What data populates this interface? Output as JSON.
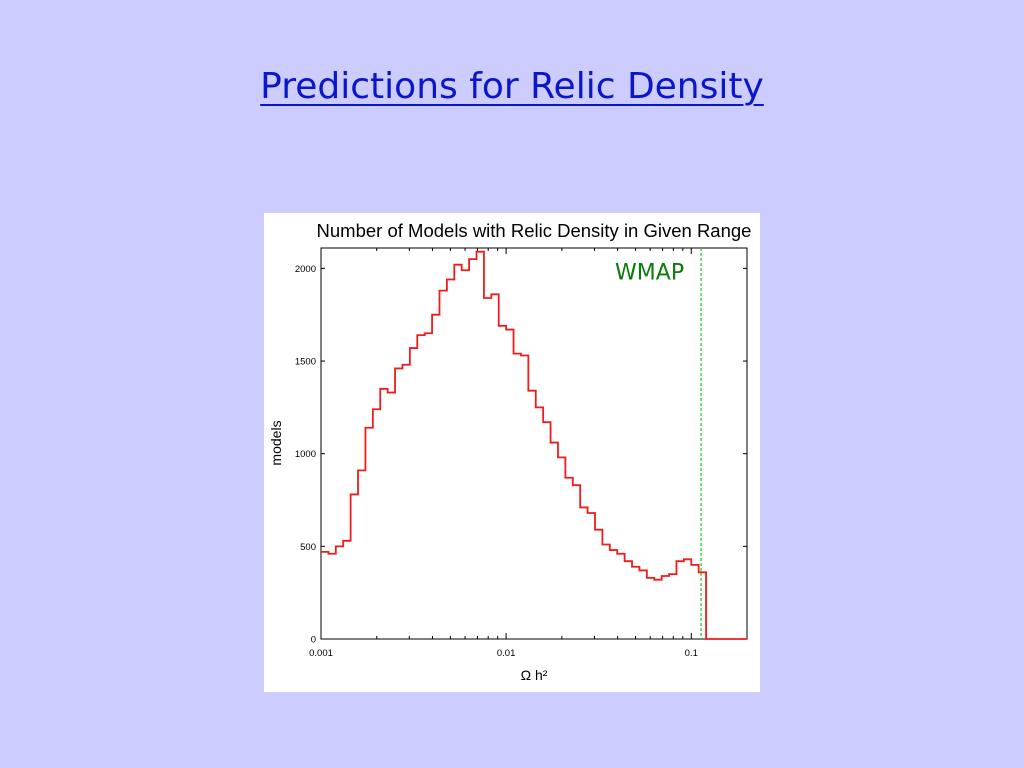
{
  "slide": {
    "title": "Predictions for Relic Density"
  },
  "colors": {
    "background": "#ccccff",
    "title": "#0a17c9",
    "histogram": "#ee1c1c",
    "wmap_line": "#22cc22",
    "wmap_text": "#0d7a0d"
  },
  "chart_data": {
    "type": "histogram",
    "title": "Number of Models with Relic Density in Given Range",
    "xlabel": "Ω h²",
    "ylabel": "models",
    "x_scale": "log",
    "xlim": [
      0.001,
      0.2
    ],
    "ylim": [
      0,
      2000
    ],
    "x_ticks": [
      {
        "value": 0.001,
        "label": "0.001"
      },
      {
        "value": 0.01,
        "label": "0.01"
      },
      {
        "value": 0.1,
        "label": "0.1"
      }
    ],
    "y_ticks": [
      {
        "value": 0,
        "label": "0"
      },
      {
        "value": 500,
        "label": "500"
      },
      {
        "value": 1000,
        "label": "1000"
      },
      {
        "value": 1500,
        "label": "1500"
      },
      {
        "value": 2000,
        "label": "2000"
      }
    ],
    "bin_edges_log10": [
      -3.0,
      -2.96,
      -2.92,
      -2.88,
      -2.84,
      -2.8,
      -2.76,
      -2.72,
      -2.68,
      -2.64,
      -2.6,
      -2.56,
      -2.52,
      -2.48,
      -2.44,
      -2.4,
      -2.36,
      -2.32,
      -2.28,
      -2.24,
      -2.2,
      -2.16,
      -2.12,
      -2.08,
      -2.04,
      -2.0,
      -1.96,
      -1.92,
      -1.88,
      -1.84,
      -1.8,
      -1.76,
      -1.72,
      -1.68,
      -1.64,
      -1.6,
      -1.56,
      -1.52,
      -1.48,
      -1.44,
      -1.4,
      -1.36,
      -1.32,
      -1.28,
      -1.24,
      -1.2,
      -1.16,
      -1.12,
      -1.08,
      -1.04,
      -1.0,
      -0.96,
      -0.92
    ],
    "counts": [
      470,
      460,
      500,
      530,
      780,
      910,
      1140,
      1240,
      1350,
      1330,
      1460,
      1480,
      1570,
      1640,
      1650,
      1750,
      1880,
      1940,
      2020,
      1990,
      2050,
      2090,
      1840,
      1860,
      1690,
      1670,
      1540,
      1530,
      1340,
      1250,
      1170,
      1060,
      980,
      870,
      830,
      710,
      680,
      590,
      510,
      480,
      460,
      420,
      390,
      370,
      330,
      320,
      340,
      350,
      420,
      430,
      400,
      360
    ],
    "annotations": [
      {
        "label": "WMAP",
        "type": "vline",
        "x": 0.113,
        "color": "#22cc22"
      }
    ]
  }
}
